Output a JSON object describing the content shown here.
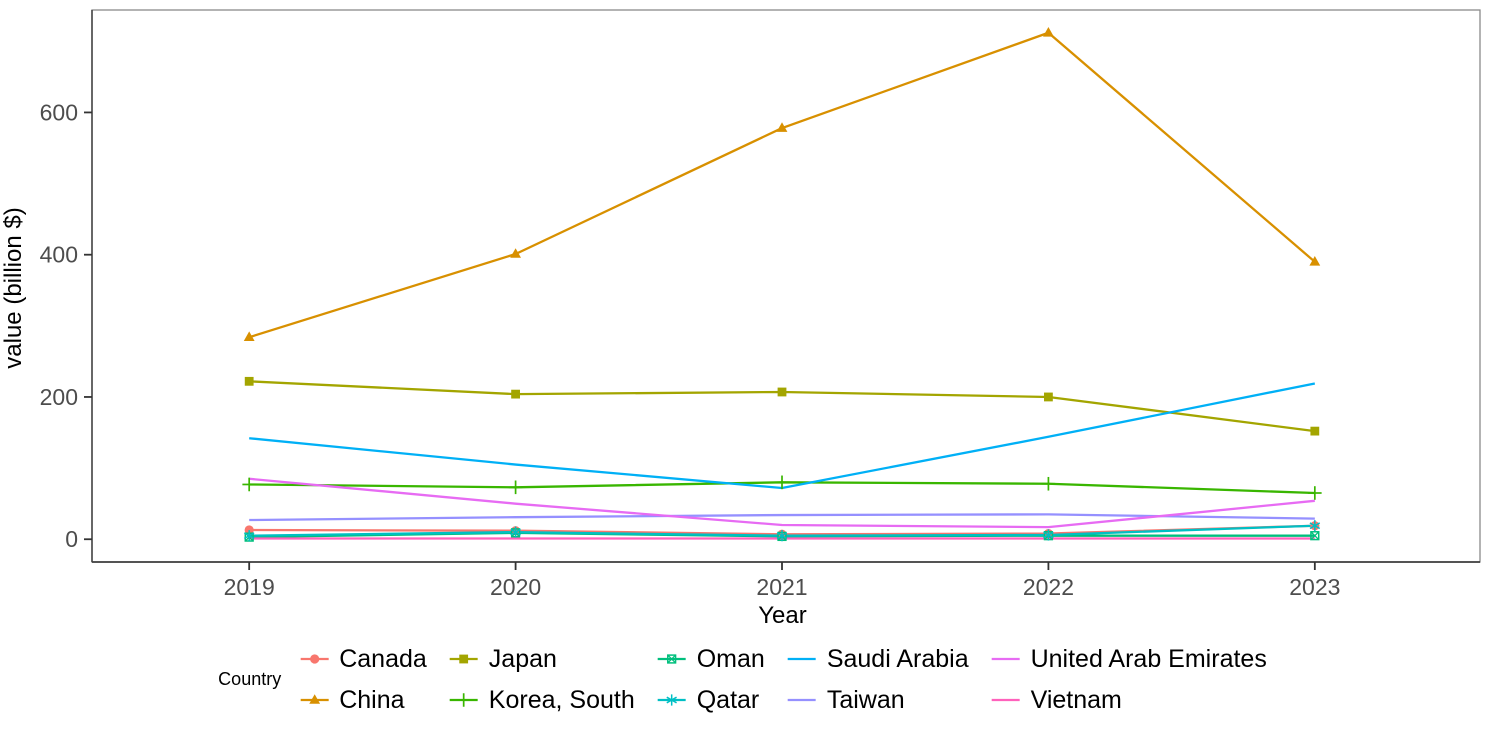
{
  "chart_data": {
    "type": "line",
    "title": "",
    "xlabel": "Year",
    "ylabel": "value (billion $)",
    "legend_title": "Country",
    "legend_position": "bottom",
    "grid": false,
    "x": [
      2019,
      2020,
      2021,
      2022,
      2023
    ],
    "x_tick_labels": [
      "2019",
      "2020",
      "2021",
      "2022",
      "2023"
    ],
    "y_ticks": [
      0,
      200,
      400,
      600
    ],
    "y_tick_labels": [
      "0",
      "200",
      "400",
      "600"
    ],
    "xlim": [
      2018.41,
      2023.62
    ],
    "ylim": [
      -32,
      744
    ],
    "series": [
      {
        "name": "Canada",
        "color": "#F8766D",
        "marker": "circle",
        "values": [
          13,
          12,
          7,
          8,
          19
        ]
      },
      {
        "name": "China",
        "color": "#D89000",
        "marker": "triangle",
        "values": [
          284,
          401,
          578,
          712,
          390
        ]
      },
      {
        "name": "Japan",
        "color": "#A3A500",
        "marker": "square",
        "values": [
          222,
          204,
          207,
          200,
          152
        ]
      },
      {
        "name": "Korea, South",
        "color": "#39B600",
        "marker": "plus",
        "values": [
          77,
          73,
          80,
          78,
          65
        ]
      },
      {
        "name": "Oman",
        "color": "#00BF7D",
        "marker": "square-x",
        "values": [
          3,
          9,
          4,
          5,
          5
        ]
      },
      {
        "name": "Qatar",
        "color": "#00BFC4",
        "marker": "asterisk",
        "values": [
          5,
          10,
          5,
          6,
          19
        ]
      },
      {
        "name": "Saudi Arabia",
        "color": "#00B0F6",
        "marker": "none",
        "values": [
          142,
          105,
          72,
          144,
          219
        ]
      },
      {
        "name": "Taiwan",
        "color": "#9590FF",
        "marker": "none",
        "values": [
          27,
          31,
          34,
          35,
          29
        ]
      },
      {
        "name": "United Arab Emirates",
        "color": "#E76BF3",
        "marker": "none",
        "values": [
          85,
          50,
          20,
          17,
          54
        ]
      },
      {
        "name": "Vietnam",
        "color": "#FF62BC",
        "marker": "none",
        "values": [
          1,
          1,
          1,
          1,
          1
        ]
      }
    ],
    "style": {
      "tick_label_color": "#4D4D4D",
      "panel_border_color": "#8A8A8A",
      "axis_line_color": "#404040",
      "background": "#FFFFFF"
    }
  }
}
